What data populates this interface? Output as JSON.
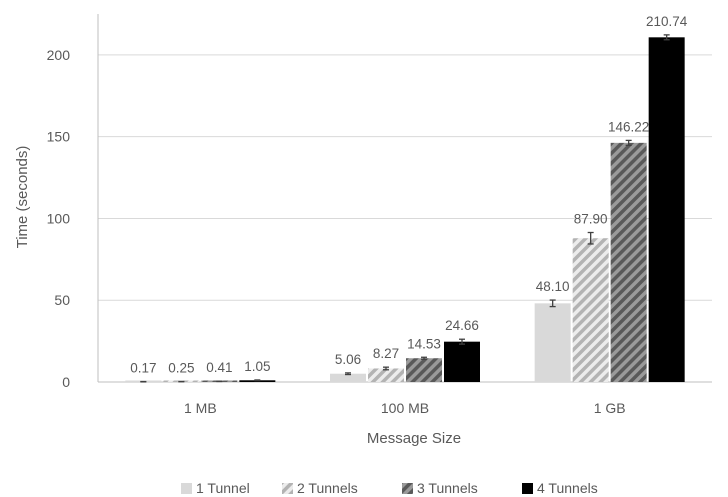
{
  "chart_data": {
    "type": "bar",
    "title": "",
    "xlabel": "Message Size",
    "ylabel": "Time (seconds)",
    "ylim": [
      0,
      225
    ],
    "yticks": [
      0,
      50,
      100,
      150,
      200
    ],
    "grid": true,
    "legend_position": "bottom",
    "categories": [
      "1 MB",
      "100 MB",
      "1 GB"
    ],
    "series": [
      {
        "name": "1 Tunnel",
        "values": [
          0.17,
          5.06,
          48.1
        ],
        "errors": [
          0.1,
          0.5,
          2.0
        ],
        "labels": [
          "0.17",
          "5.06",
          "48.10"
        ],
        "color": "#d9d9d9",
        "pattern": "solid"
      },
      {
        "name": "2 Tunnels",
        "values": [
          0.25,
          8.27,
          87.9
        ],
        "errors": [
          0.1,
          0.8,
          3.5
        ],
        "labels": [
          "0.25",
          "8.27",
          "87.90"
        ],
        "color": "#bfbfbf",
        "pattern": "light-stripes"
      },
      {
        "name": "3 Tunnels",
        "values": [
          0.41,
          14.53,
          146.22
        ],
        "errors": [
          0.1,
          0.6,
          1.5
        ],
        "labels": [
          "0.41",
          "14.53",
          "146.22"
        ],
        "color": "#7f7f7f",
        "pattern": "dark-stripes"
      },
      {
        "name": "4 Tunnels",
        "values": [
          1.05,
          24.66,
          210.74
        ],
        "errors": [
          0.2,
          1.5,
          1.5
        ],
        "labels": [
          "1.05",
          "24.66",
          "210.74"
        ],
        "color": "#000000",
        "pattern": "solid"
      }
    ]
  }
}
